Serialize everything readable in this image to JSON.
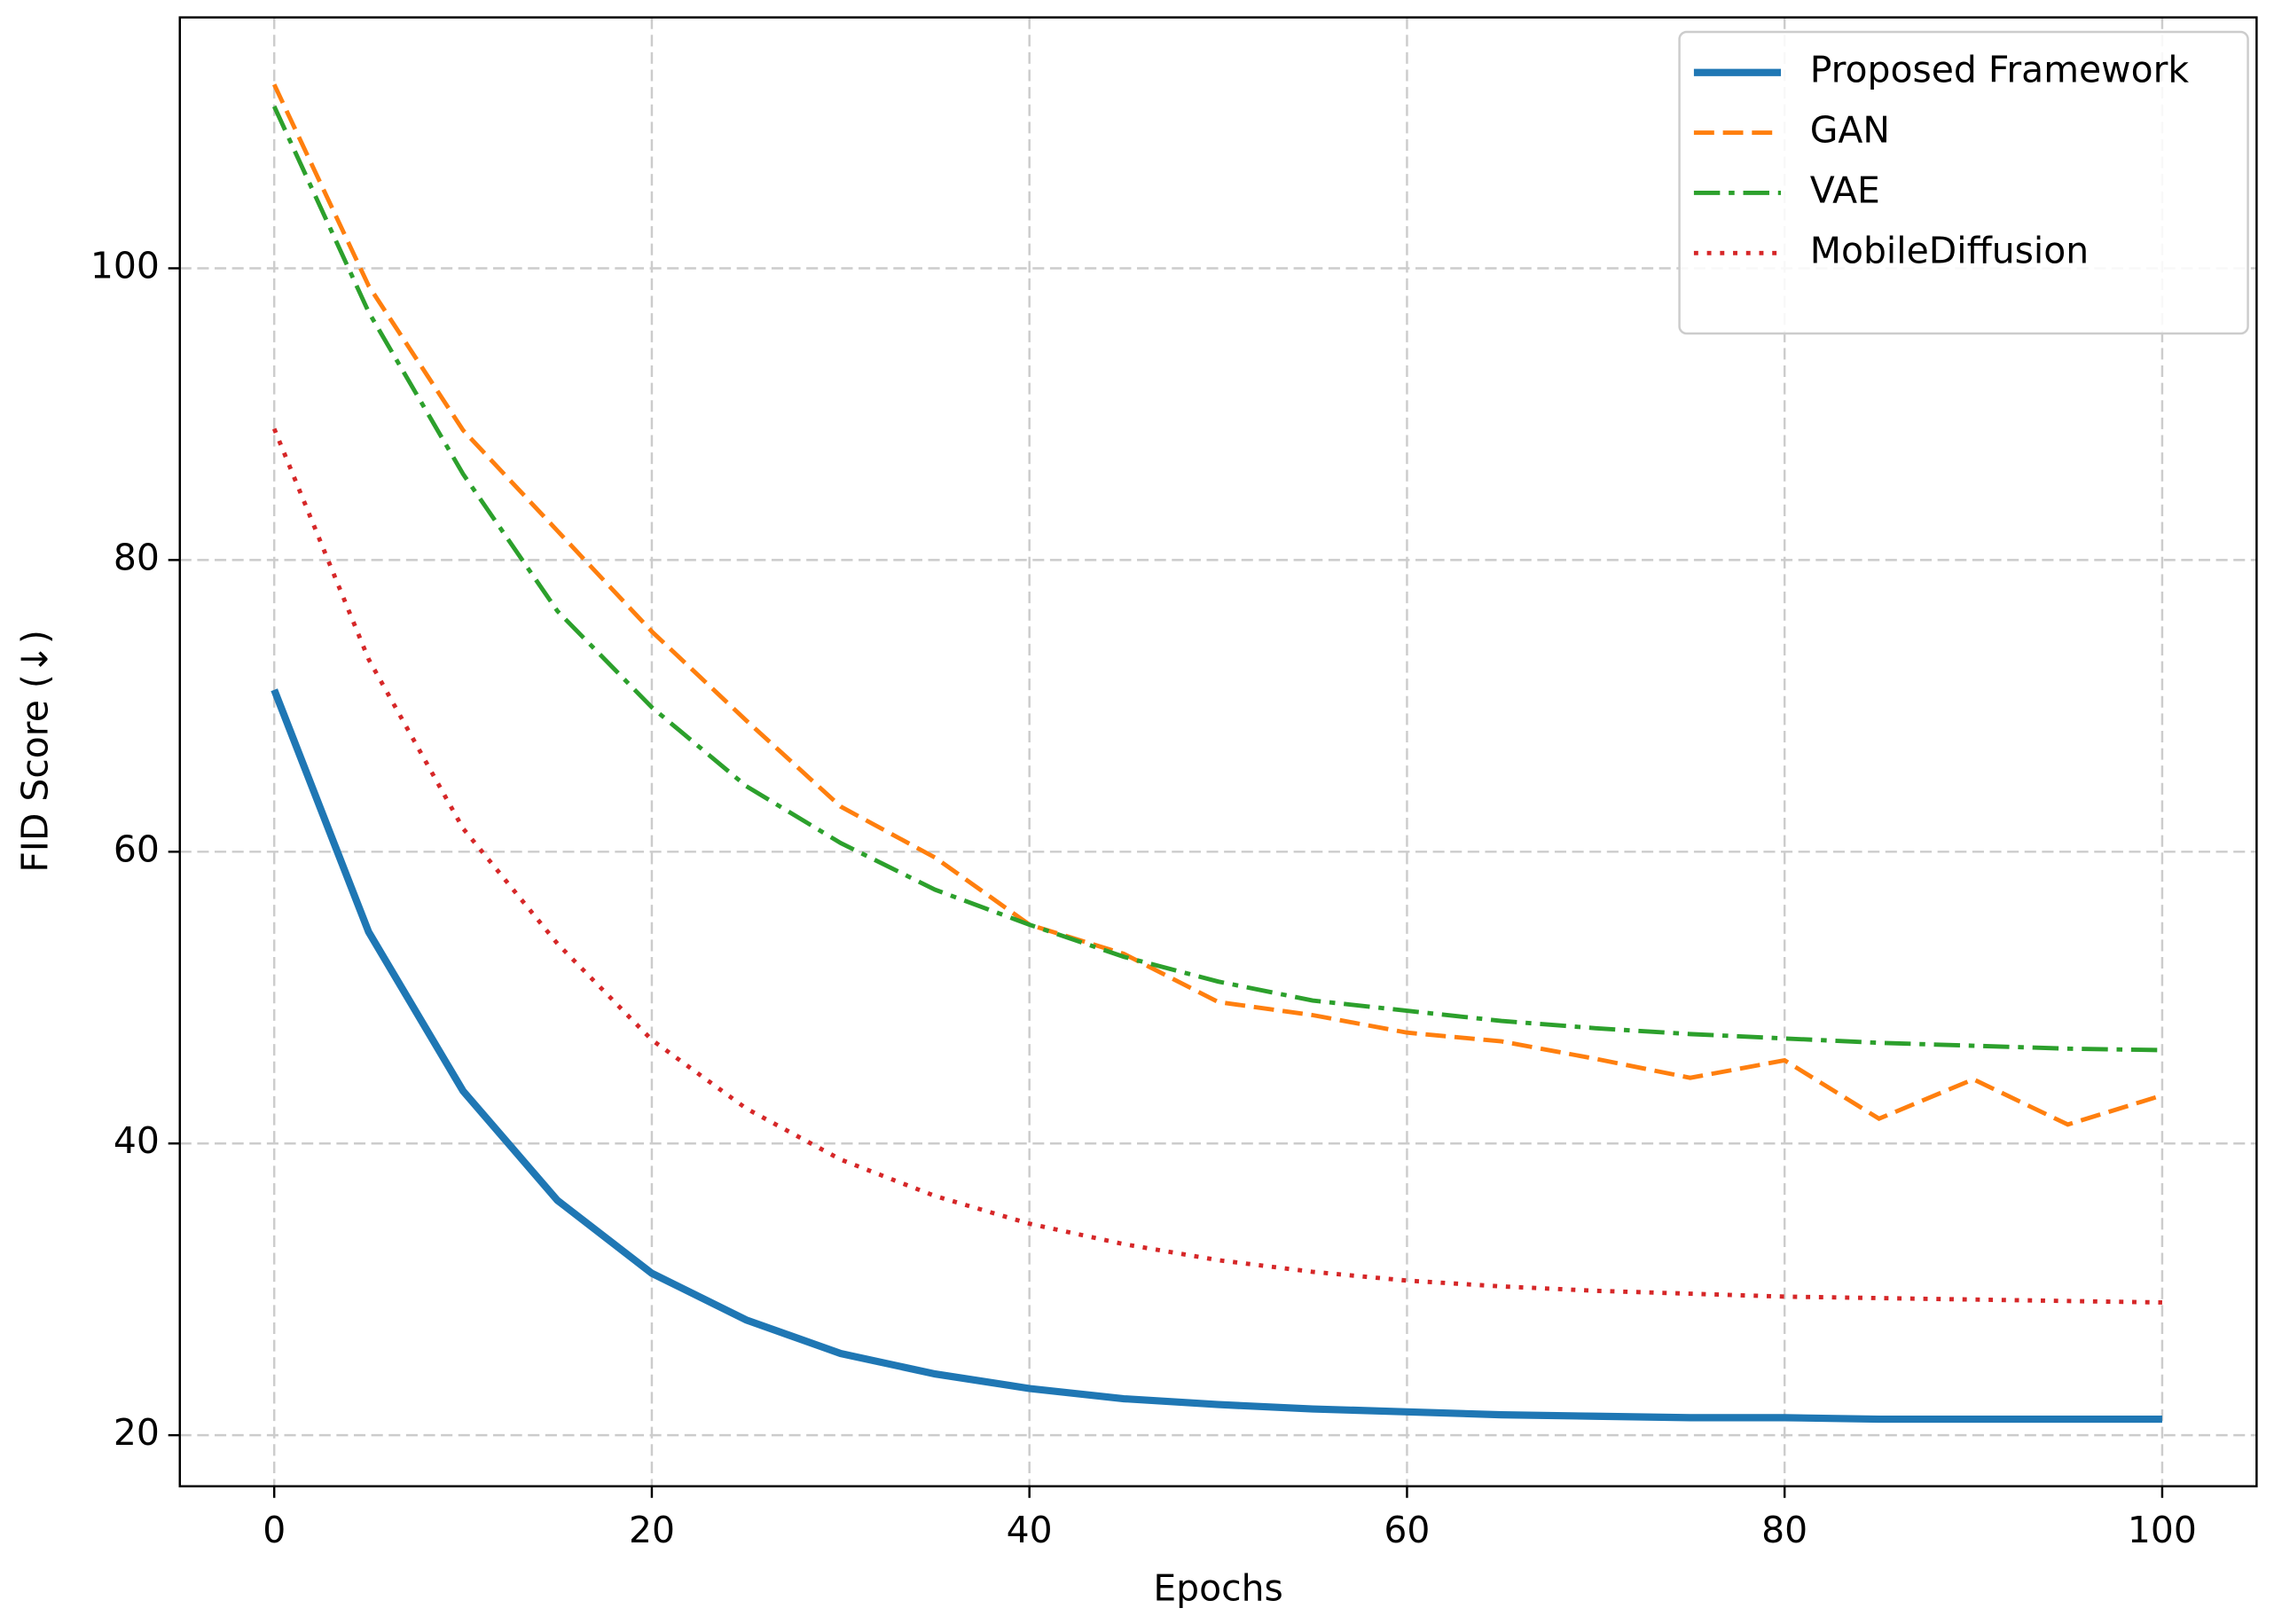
{
  "chart_data": {
    "type": "line",
    "x_label": "Epochs",
    "y_label": "FID Score (↓)",
    "x": [
      0,
      5,
      10,
      15,
      20,
      25,
      30,
      35,
      40,
      45,
      50,
      55,
      60,
      65,
      70,
      75,
      80,
      85,
      90,
      95,
      100
    ],
    "series": [
      {
        "name": "Proposed Framework",
        "color": "#1f77b4",
        "linestyle": "solid",
        "linewidth": 5,
        "values": [
          71.1,
          54.5,
          43.6,
          36.1,
          31.1,
          27.9,
          25.6,
          24.2,
          23.2,
          22.5,
          22.1,
          21.8,
          21.6,
          21.4,
          21.3,
          21.2,
          21.2,
          21.1,
          21.1,
          21.1,
          21.1
        ]
      },
      {
        "name": "GAN",
        "color": "#ff7f0e",
        "linestyle": "dashed",
        "linewidth": 3,
        "values": [
          112.6,
          98.8,
          88.9,
          82.0,
          75.1,
          69.0,
          63.1,
          59.6,
          55.0,
          53.0,
          49.7,
          48.8,
          47.6,
          47.0,
          45.8,
          44.5,
          45.7,
          41.7,
          44.4,
          41.3,
          43.3
        ]
      },
      {
        "name": "VAE",
        "color": "#2ca02c",
        "linestyle": "dashdot",
        "linewidth": 3,
        "values": [
          111.1,
          97.0,
          85.9,
          76.5,
          69.9,
          64.5,
          60.6,
          57.4,
          55.0,
          52.8,
          51.1,
          49.8,
          49.1,
          48.4,
          47.9,
          47.5,
          47.2,
          46.9,
          46.7,
          46.5,
          46.4
        ]
      },
      {
        "name": "MobileDiffusion",
        "color": "#d62728",
        "linestyle": "dotted",
        "linewidth": 3,
        "values": [
          89.0,
          73.2,
          61.6,
          53.7,
          47.1,
          42.4,
          38.9,
          36.4,
          34.5,
          33.1,
          32.0,
          31.2,
          30.6,
          30.2,
          29.9,
          29.7,
          29.5,
          29.4,
          29.3,
          29.2,
          29.1
        ]
      }
    ],
    "xlim": [
      -5,
      105
    ],
    "xticks": [
      0,
      20,
      40,
      60,
      80,
      100
    ],
    "ylim": [
      16.5,
      117.2
    ],
    "yticks": [
      20,
      40,
      60,
      80,
      100
    ],
    "grid": true,
    "legend": "upper right"
  }
}
